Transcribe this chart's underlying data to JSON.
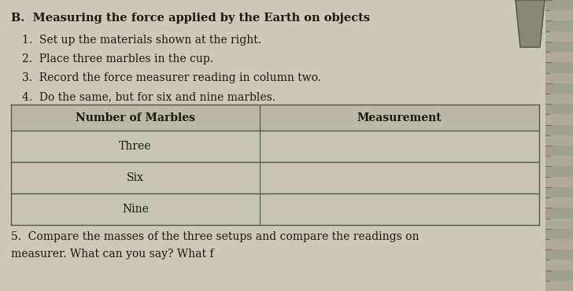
{
  "title": "B.  Measuring the force applied by the Earth on objects",
  "steps": [
    "1.  Set up the materials shown at the right.",
    "2.  Place three marbles in the cup.",
    "3.  Record the force measurer reading in column two.",
    "4.  Do the same, but for six and nine marbles."
  ],
  "table_headers": [
    "Number of Marbles",
    "Measurement"
  ],
  "table_rows": [
    "Three",
    "Six",
    "Nine"
  ],
  "footer_text": "5.  Compare the masses of the three setups and compare the readings on",
  "footer_text2": "measurer. What can you say? What f",
  "bg_color": "#cdc8b8",
  "table_bg": "#c8c4b4",
  "header_bg": "#bbb8a8",
  "line_color": "#555544",
  "text_color": "#1a1808",
  "title_fontsize": 10.5,
  "body_fontsize": 10.0,
  "table_fontsize": 10.0,
  "ruler_color1": "#b0aa9a",
  "ruler_color2": "#a0a090"
}
